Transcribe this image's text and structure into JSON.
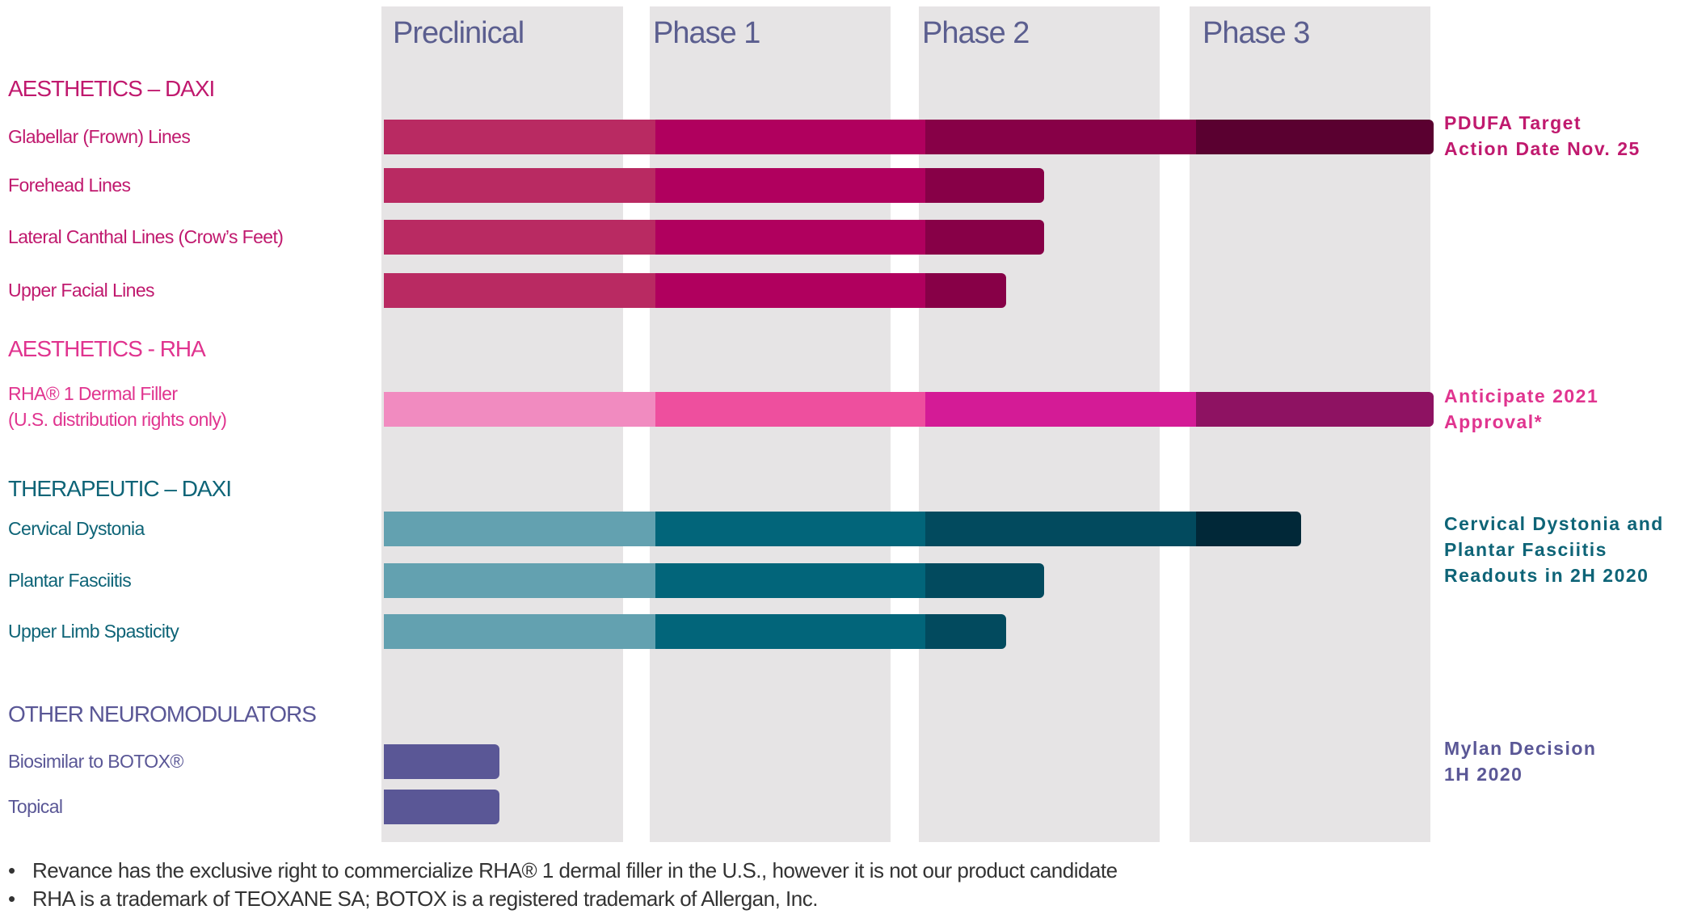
{
  "chart_data": {
    "type": "bar",
    "orientation": "horizontal",
    "stages": [
      "Preclinical",
      "Phase 1",
      "Phase 2",
      "Phase 3"
    ],
    "xlim": [
      0,
      4
    ],
    "value_units": "stages completed (Preclinical=1, Phase 1=2, Phase 2=3, Phase 3=4)",
    "groups": [
      {
        "title": "AESTHETICS – DAXI",
        "color": "#c0196e",
        "segment_colors": [
          "#b92a62",
          "#b0005e",
          "#870047",
          "#5a0030"
        ],
        "items": [
          {
            "label": "Glabellar (Frown) Lines",
            "progress": 4.0
          },
          {
            "label": "Forehead Lines",
            "progress": 2.45
          },
          {
            "label": "Lateral Canthal Lines (Crow’s Feet)",
            "progress": 2.45
          },
          {
            "label": "Upper Facial Lines",
            "progress": 2.31
          }
        ],
        "note": [
          "PDUFA Target",
          "Action Date Nov. 25"
        ]
      },
      {
        "title": "AESTHETICS - RHA",
        "color": "#e0348f",
        "segment_colors": [
          "#f18bc0",
          "#ee4f9e",
          "#d41b96",
          "#8e1262"
        ],
        "items": [
          {
            "label": "RHA® 1 Dermal Filler",
            "label2": "(U.S. distribution rights only)",
            "progress": 4.0
          }
        ],
        "note": [
          "Anticipate 2021",
          "Approval*"
        ]
      },
      {
        "title": "THERAPEUTIC – DAXI",
        "color": "#0e6477",
        "segment_colors": [
          "#63a1b0",
          "#02657a",
          "#024a5e",
          "#012838"
        ],
        "items": [
          {
            "label": "Cervical Dystonia",
            "progress": 3.45
          },
          {
            "label": "Plantar Fasciitis",
            "progress": 2.45
          },
          {
            "label": "Upper Limb Spasticity",
            "progress": 2.31
          }
        ],
        "note": [
          "Cervical Dystonia and",
          "Plantar Fasciitis",
          "Readouts in 2H 2020"
        ]
      },
      {
        "title": "OTHER NEUROMODULATORS",
        "color": "#5a5796",
        "segment_colors": [
          "#5a5796",
          "#5a5796",
          "#5a5796",
          "#5a5796"
        ],
        "items": [
          {
            "label": "Biosimilar to BOTOX®",
            "progress": 0.43
          },
          {
            "label": "Topical",
            "progress": 0.43
          }
        ],
        "note": [
          "Mylan Decision",
          "1H 2020"
        ]
      }
    ],
    "phase_header_color": "#5b5e8f",
    "column_color": "#e6e4e5"
  },
  "footnotes": [
    "Revance has the exclusive right to commercialize RHA® 1 dermal filler in the U.S., however it is not our product candidate",
    "RHA  is a trademark of TEOXANE SA;  BOTOX is a registered trademark of Allergan, Inc."
  ],
  "bullet": "•"
}
